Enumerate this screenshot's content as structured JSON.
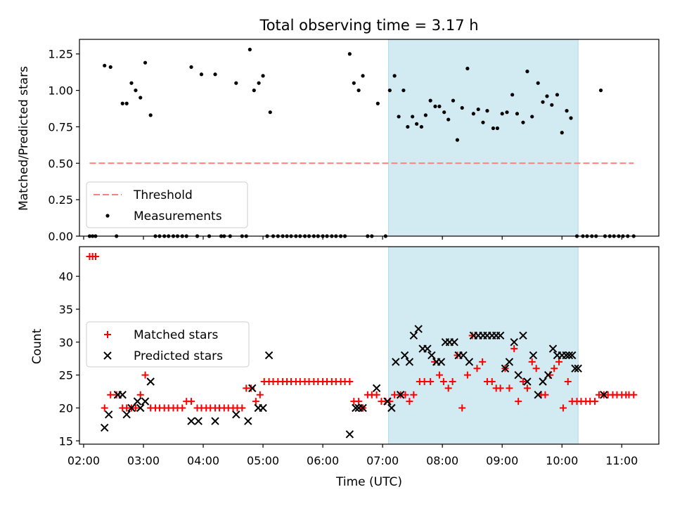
{
  "chart_data": {
    "title": "Total observing time = 3.17 h",
    "xlabel": "Time (UTC)",
    "x_ticks": [
      "02:00",
      "03:00",
      "04:00",
      "05:00",
      "06:00",
      "07:00",
      "08:00",
      "09:00",
      "10:00",
      "11:00"
    ],
    "x_tick_hours": [
      2,
      3,
      4,
      5,
      6,
      7,
      8,
      9,
      10,
      11
    ],
    "xlim": [
      1.93,
      11.62
    ],
    "highlight_span": [
      7.1,
      10.27
    ],
    "colors": {
      "highlight": "#add8e6",
      "threshold": "#ff7f7f",
      "matched": "#ff0000",
      "predicted": "#000000"
    },
    "panels": [
      {
        "type": "scatter",
        "ylabel": "Matched/Predicted stars",
        "ylim": [
          0,
          1.35
        ],
        "y_ticks": [
          "0.00",
          "0.25",
          "0.50",
          "0.75",
          "1.00",
          "1.25"
        ],
        "legend": {
          "placement": "lower left",
          "items": [
            "Threshold",
            "Measurements"
          ]
        },
        "threshold": {
          "name": "Threshold",
          "y": 0.5,
          "x": [
            2.1,
            11.2
          ]
        },
        "series": [
          {
            "name": "Measurements",
            "x": [
              2.1,
              2.15,
              2.2,
              2.35,
              2.45,
              2.55,
              2.65,
              2.72,
              2.8,
              2.87,
              2.95,
              3.03,
              3.12,
              3.2,
              3.27,
              3.35,
              3.42,
              3.5,
              3.57,
              3.65,
              3.72,
              3.8,
              3.9,
              3.97,
              4.1,
              4.2,
              4.3,
              4.35,
              4.45,
              4.55,
              4.65,
              4.72,
              4.78,
              4.85,
              4.93,
              5.0,
              5.07,
              5.12,
              5.17,
              5.25,
              5.33,
              5.4,
              5.47,
              5.55,
              5.62,
              5.7,
              5.77,
              5.85,
              5.92,
              6.0,
              6.07,
              6.15,
              6.22,
              6.3,
              6.37,
              6.45,
              6.52,
              6.6,
              6.67,
              6.75,
              6.82,
              6.92,
              7.05,
              7.12,
              7.2,
              7.27,
              7.35,
              7.42,
              7.5,
              7.57,
              7.65,
              7.72,
              7.8,
              7.88,
              7.95,
              8.03,
              8.1,
              8.18,
              8.25,
              8.33,
              8.42,
              8.52,
              8.6,
              8.68,
              8.75,
              8.85,
              8.92,
              9.0,
              9.08,
              9.17,
              9.25,
              9.35,
              9.42,
              9.5,
              9.6,
              9.68,
              9.75,
              9.83,
              9.92,
              10.0,
              10.08,
              10.15,
              10.25,
              10.35,
              10.42,
              10.5,
              10.57,
              10.65,
              10.72,
              10.8,
              10.87,
              10.95,
              11.02,
              11.1,
              11.2
            ],
            "y": [
              0,
              0,
              0,
              1.17,
              1.16,
              0,
              0.91,
              0.91,
              1.05,
              1.0,
              0.95,
              1.19,
              0.83,
              0,
              0,
              0,
              0,
              0,
              0,
              0,
              0,
              1.16,
              0,
              1.11,
              0,
              1.11,
              0,
              0,
              0,
              1.05,
              0,
              0,
              1.28,
              1.0,
              1.05,
              1.1,
              0,
              0.85,
              0,
              0,
              0,
              0,
              0,
              0,
              0,
              0,
              0,
              0,
              0,
              0,
              0,
              0,
              0,
              0,
              0,
              1.25,
              1.05,
              1.0,
              1.1,
              0,
              0,
              0.91,
              0,
              1.0,
              1.1,
              0.82,
              1.0,
              0.75,
              0.82,
              0.77,
              0.75,
              0.83,
              0.93,
              0.89,
              0.89,
              0.85,
              0.8,
              0.93,
              0.66,
              0.88,
              1.15,
              0.84,
              0.87,
              0.78,
              0.86,
              0.74,
              0.74,
              0.84,
              0.85,
              0.97,
              0.84,
              0.78,
              1.13,
              0.82,
              1.05,
              0.92,
              0.96,
              0.9,
              0.97,
              0.71,
              0.86,
              0.81,
              0,
              0,
              0,
              0,
              0,
              1.0,
              0,
              0,
              0,
              0,
              0,
              0,
              0
            ]
          }
        ]
      },
      {
        "type": "scatter",
        "ylabel": "Count",
        "ylim": [
          14.5,
          44.5
        ],
        "y_ticks": [
          "15",
          "20",
          "25",
          "30",
          "35",
          "40"
        ],
        "legend": {
          "placement": "center left",
          "items": [
            "Matched stars",
            "Predicted stars"
          ]
        },
        "series": [
          {
            "name": "Matched stars",
            "marker": "+",
            "x": [
              2.1,
              2.15,
              2.2,
              2.35,
              2.45,
              2.55,
              2.65,
              2.72,
              2.8,
              2.87,
              2.95,
              3.03,
              3.12,
              3.2,
              3.27,
              3.35,
              3.42,
              3.5,
              3.57,
              3.65,
              3.72,
              3.8,
              3.9,
              3.97,
              4.05,
              4.12,
              4.2,
              4.27,
              4.35,
              4.42,
              4.5,
              4.57,
              4.65,
              4.72,
              4.8,
              4.88,
              4.95,
              5.02,
              5.1,
              5.17,
              5.25,
              5.33,
              5.4,
              5.47,
              5.55,
              5.62,
              5.7,
              5.77,
              5.85,
              5.92,
              6.0,
              6.07,
              6.15,
              6.22,
              6.3,
              6.37,
              6.45,
              6.52,
              6.6,
              6.67,
              6.75,
              6.82,
              6.9,
              6.98,
              7.05,
              7.12,
              7.2,
              7.3,
              7.38,
              7.45,
              7.52,
              7.62,
              7.7,
              7.8,
              7.87,
              7.95,
              8.02,
              8.1,
              8.17,
              8.25,
              8.33,
              8.42,
              8.5,
              8.58,
              8.67,
              8.75,
              8.83,
              8.9,
              8.97,
              9.05,
              9.12,
              9.2,
              9.27,
              9.35,
              9.42,
              9.5,
              9.57,
              9.65,
              9.72,
              9.8,
              9.87,
              9.95,
              10.02,
              10.1,
              10.17,
              10.25,
              10.32,
              10.4,
              10.47,
              10.55,
              10.62,
              10.7,
              10.77,
              10.85,
              10.92,
              11.0,
              11.07,
              11.12,
              11.2
            ],
            "y": [
              43,
              43,
              43,
              20,
              22,
              22,
              20,
              20,
              20,
              20,
              22,
              25,
              20,
              20,
              20,
              20,
              20,
              20,
              20,
              20,
              21,
              21,
              20,
              20,
              20,
              20,
              20,
              20,
              20,
              20,
              20,
              20,
              20,
              23,
              23,
              21,
              22,
              24,
              24,
              24,
              24,
              24,
              24,
              24,
              24,
              24,
              24,
              24,
              24,
              24,
              24,
              24,
              24,
              24,
              24,
              24,
              24,
              21,
              21,
              20,
              22,
              22,
              22,
              21,
              21,
              21,
              22,
              22,
              22,
              21,
              22,
              24,
              24,
              24,
              27,
              25,
              24,
              23,
              24,
              28,
              20,
              25,
              31,
              26,
              27,
              24,
              24,
              23,
              23,
              26,
              23,
              29,
              21,
              24,
              23,
              27,
              26,
              22,
              22,
              25,
              26,
              27,
              20,
              24,
              21,
              21,
              21,
              21,
              21,
              21,
              22,
              22,
              22,
              22,
              22,
              22,
              22,
              22,
              22
            ]
          },
          {
            "name": "Predicted stars",
            "marker": "x",
            "x": [
              2.35,
              2.42,
              2.57,
              2.65,
              2.72,
              2.8,
              2.9,
              2.95,
              3.03,
              3.12,
              3.8,
              3.92,
              4.2,
              4.55,
              4.75,
              4.82,
              4.92,
              5.0,
              5.1,
              6.45,
              6.55,
              6.6,
              6.67,
              6.9,
              7.08,
              7.15,
              7.22,
              7.3,
              7.37,
              7.45,
              7.52,
              7.6,
              7.67,
              7.75,
              7.82,
              7.9,
              7.98,
              8.05,
              8.12,
              8.2,
              8.27,
              8.35,
              8.45,
              8.52,
              8.6,
              8.68,
              8.75,
              8.83,
              8.9,
              8.97,
              9.05,
              9.12,
              9.2,
              9.27,
              9.35,
              9.42,
              9.52,
              9.6,
              9.68,
              9.77,
              9.85,
              9.92,
              10.0,
              10.07,
              10.12,
              10.17,
              10.22,
              10.27,
              10.7
            ],
            "y": [
              17,
              19,
              22,
              22,
              19,
              20,
              21,
              20,
              21,
              24,
              18,
              18,
              18,
              19,
              18,
              23,
              20,
              20,
              28,
              16,
              20,
              20,
              20,
              23,
              21,
              20,
              27,
              22,
              28,
              27,
              31,
              32,
              29,
              29,
              28,
              27,
              27,
              30,
              30,
              30,
              28,
              28,
              27,
              31,
              31,
              31,
              31,
              31,
              31,
              31,
              26,
              27,
              30,
              25,
              31,
              24,
              28,
              22,
              24,
              25,
              29,
              28,
              28,
              28,
              28,
              28,
              26,
              26,
              22
            ]
          }
        ]
      }
    ]
  }
}
